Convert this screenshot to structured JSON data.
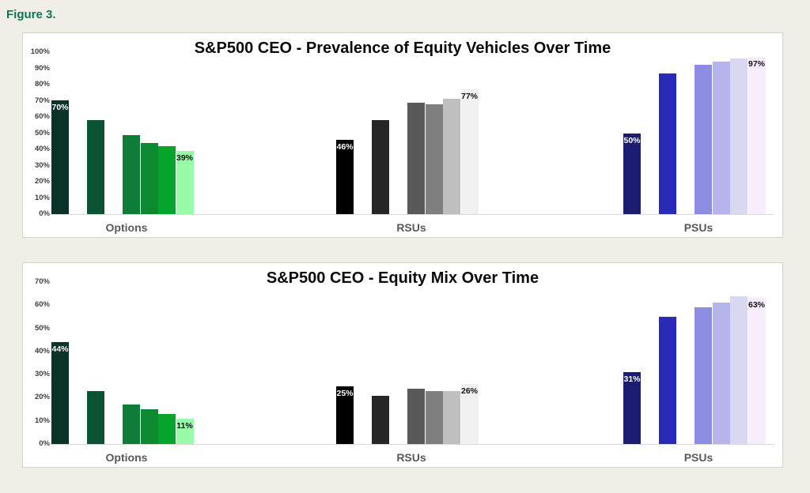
{
  "figure_label": "Figure 3.",
  "colors": {
    "figure_label": "#0f7356",
    "page_background": "#f1eee8",
    "panel_background": "#ffffff",
    "panel_border": "#d6d3cb",
    "axis_text": "#3f3f3f",
    "category_text": "#595959",
    "axis_line": "#d9d9d9"
  },
  "chart_data": [
    {
      "type": "bar",
      "title": "S&P500 CEO - Prevalence of Equity Vehicles Over Time",
      "categories": [
        "Options",
        "RSUs",
        "PSUs"
      ],
      "ylim": [
        0,
        100
      ],
      "ytick_step": 10,
      "ytick_labels": [
        "0%",
        "10%",
        "20%",
        "30%",
        "40%",
        "50%",
        "60%",
        "70%",
        "80%",
        "90%",
        "100%"
      ],
      "grid": false,
      "legend": "none",
      "bars_per_category": 6,
      "groups": [
        {
          "category": "Options",
          "values": [
            70,
            58,
            49,
            44,
            42,
            39
          ],
          "colors": [
            "#0a3329",
            "#0c5334",
            "#0f7d3a",
            "#0d8a31",
            "#07a42c",
            "#97fba7"
          ],
          "bar_labels": [
            {
              "index": 0,
              "text": "70%",
              "color": "#ffffff"
            },
            {
              "index": 5,
              "text": "39%",
              "color": "#111111"
            }
          ]
        },
        {
          "category": "RSUs",
          "values": [
            46,
            58,
            69,
            68,
            71,
            77
          ],
          "colors": [
            "#000000",
            "#262626",
            "#595959",
            "#7f7f7f",
            "#bfbfbf",
            "#f0f0f0"
          ],
          "bar_labels": [
            {
              "index": 0,
              "text": "46%",
              "color": "#ffffff"
            },
            {
              "index": 5,
              "text": "77%",
              "color": "#111111"
            }
          ]
        },
        {
          "category": "PSUs",
          "values": [
            50,
            87,
            92,
            94,
            96,
            97
          ],
          "colors": [
            "#1c1c72",
            "#2a2ab8",
            "#8c8ce3",
            "#b5b5ec",
            "#d8d8f2",
            "#f8edfc"
          ],
          "bar_labels": [
            {
              "index": 0,
              "text": "50%",
              "color": "#ffffff"
            },
            {
              "index": 5,
              "text": "97%",
              "color": "#111111"
            }
          ]
        }
      ]
    },
    {
      "type": "bar",
      "title": "S&P500 CEO - Equity Mix Over Time",
      "categories": [
        "Options",
        "RSUs",
        "PSUs"
      ],
      "ylim": [
        0,
        70
      ],
      "ytick_step": 10,
      "ytick_labels": [
        "0%",
        "10%",
        "20%",
        "30%",
        "40%",
        "50%",
        "60%",
        "70%"
      ],
      "grid": false,
      "legend": "none",
      "bars_per_category": 6,
      "groups": [
        {
          "category": "Options",
          "values": [
            44,
            23,
            17,
            15,
            13,
            11
          ],
          "colors": [
            "#0a3329",
            "#0c5334",
            "#0f7d3a",
            "#0d8a31",
            "#07a42c",
            "#97fba7"
          ],
          "bar_labels": [
            {
              "index": 0,
              "text": "44%",
              "color": "#ffffff"
            },
            {
              "index": 5,
              "text": "11%",
              "color": "#111111"
            }
          ]
        },
        {
          "category": "RSUs",
          "values": [
            25,
            21,
            24,
            23,
            23,
            26
          ],
          "colors": [
            "#000000",
            "#262626",
            "#595959",
            "#7f7f7f",
            "#bfbfbf",
            "#f0f0f0"
          ],
          "bar_labels": [
            {
              "index": 0,
              "text": "25%",
              "color": "#ffffff"
            },
            {
              "index": 5,
              "text": "26%",
              "color": "#111111"
            }
          ]
        },
        {
          "category": "PSUs",
          "values": [
            31,
            55,
            59,
            61,
            64,
            63
          ],
          "colors": [
            "#1c1c72",
            "#2a2ab8",
            "#8c8ce3",
            "#b5b5ec",
            "#d8d8f2",
            "#f8edfc"
          ],
          "bar_labels": [
            {
              "index": 0,
              "text": "31%",
              "color": "#ffffff"
            },
            {
              "index": 5,
              "text": "63%",
              "color": "#111111"
            }
          ]
        }
      ]
    }
  ]
}
